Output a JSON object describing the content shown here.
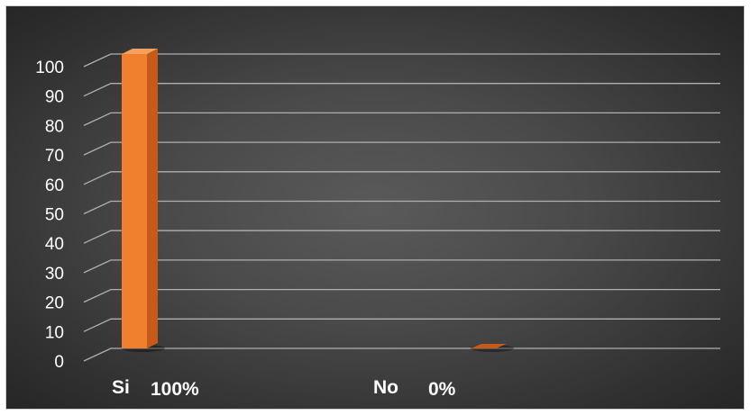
{
  "chart_data": {
    "type": "bar",
    "style": "3d-column",
    "categories": [
      "Si",
      "No"
    ],
    "values": [
      100,
      0
    ],
    "data_labels": [
      "100%",
      "0%"
    ],
    "title": "",
    "xlabel": "",
    "ylabel": "",
    "ylim": [
      0,
      100
    ],
    "yticks": [
      0,
      10,
      20,
      30,
      40,
      50,
      60,
      70,
      80,
      90,
      100
    ],
    "grid": true,
    "legend": "none",
    "colors": {
      "bar": "#f08030",
      "bar_side": "#c85a18",
      "bar_top": "#f4a060",
      "gridline": "#b0b0b0",
      "background": "#3c3c3c",
      "text": "#ffffff"
    }
  }
}
